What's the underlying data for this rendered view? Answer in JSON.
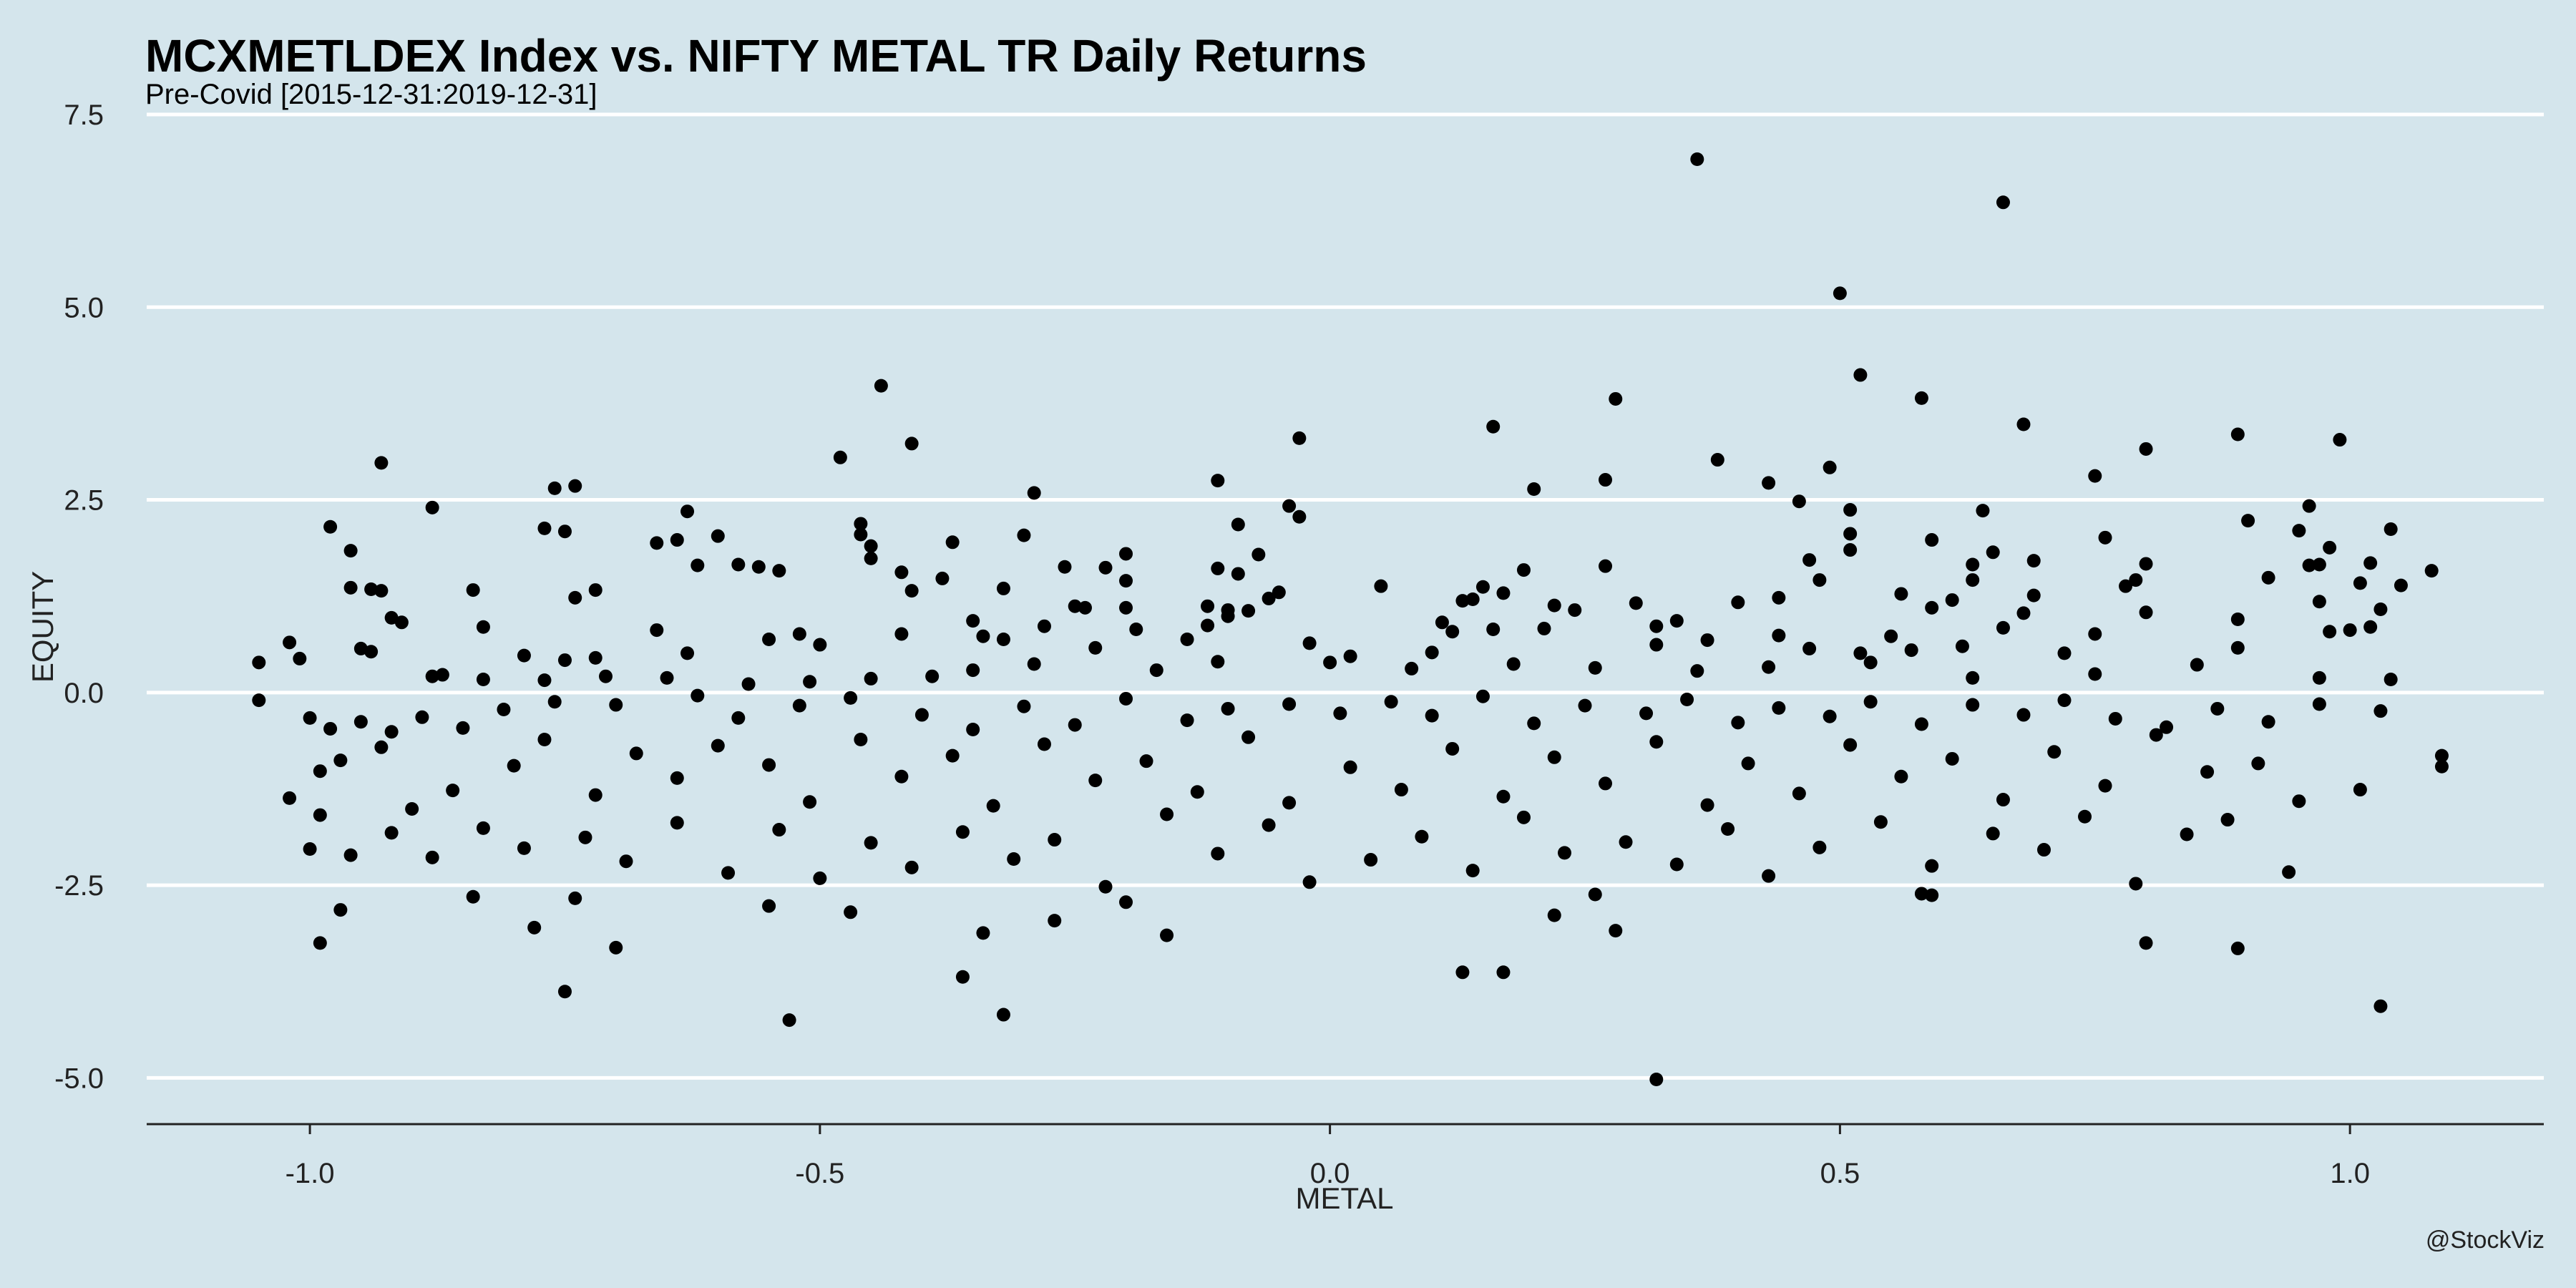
{
  "chart_data": {
    "type": "scatter",
    "title": "MCXMETLDEX Index vs. NIFTY METAL TR Daily Returns",
    "subtitle": "Pre-Covid [2015-12-31:2019-12-31]",
    "xlabel": "METAL",
    "ylabel": "EQUITY",
    "caption": "@StockViz",
    "xlim": [
      -1.16,
      1.19
    ],
    "ylim": [
      -5.6,
      7.5
    ],
    "xticks": [
      -1.0,
      -0.5,
      0.0,
      0.5,
      1.0
    ],
    "xtick_labels": [
      "-1.0",
      "-0.5",
      "0.0",
      "0.5",
      "1.0"
    ],
    "yticks": [
      -5.0,
      -2.5,
      0.0,
      2.5,
      5.0,
      7.5
    ],
    "ytick_labels": [
      "-5.0",
      "-2.5",
      "0.0",
      "2.5",
      "5.0",
      "7.5"
    ],
    "grid": "horizontal",
    "colors": {
      "background": "#d4e5ec",
      "grid": "#ffffff",
      "point": "#000000"
    },
    "points": [
      [
        0.36,
        6.92
      ],
      [
        0.66,
        6.36
      ],
      [
        0.5,
        5.18
      ],
      [
        0.52,
        4.12
      ],
      [
        -0.44,
        3.98
      ],
      [
        0.28,
        3.81
      ],
      [
        0.58,
        3.82
      ],
      [
        0.68,
        3.48
      ],
      [
        0.16,
        3.45
      ],
      [
        0.89,
        3.35
      ],
      [
        -0.03,
        3.3
      ],
      [
        0.99,
        3.28
      ],
      [
        -0.41,
        3.23
      ],
      [
        0.8,
        3.16
      ],
      [
        -0.48,
        3.05
      ],
      [
        0.38,
        3.02
      ],
      [
        -0.93,
        2.98
      ],
      [
        0.49,
        2.92
      ],
      [
        0.75,
        2.81
      ],
      [
        -0.11,
        2.75
      ],
      [
        0.27,
        2.76
      ],
      [
        0.43,
        2.72
      ],
      [
        -0.74,
        2.68
      ],
      [
        -0.76,
        2.65
      ],
      [
        0.2,
        2.64
      ],
      [
        -0.29,
        2.59
      ],
      [
        0.46,
        2.48
      ],
      [
        -0.04,
        2.42
      ],
      [
        0.96,
        2.42
      ],
      [
        -0.88,
        2.4
      ],
      [
        0.51,
        2.37
      ],
      [
        -0.63,
        2.35
      ],
      [
        0.64,
        2.36
      ],
      [
        -0.03,
        2.28
      ],
      [
        0.9,
        2.23
      ],
      [
        -0.46,
        2.19
      ],
      [
        -0.98,
        2.15
      ],
      [
        -0.77,
        2.13
      ],
      [
        -0.09,
        2.18
      ],
      [
        -0.75,
        2.09
      ],
      [
        0.95,
        2.1
      ],
      [
        1.04,
        2.12
      ],
      [
        -0.46,
        2.05
      ],
      [
        -0.6,
        2.03
      ],
      [
        -0.3,
        2.04
      ],
      [
        0.51,
        2.06
      ],
      [
        0.59,
        1.98
      ],
      [
        -0.64,
        1.98
      ],
      [
        -0.66,
        1.94
      ],
      [
        -0.45,
        1.9
      ],
      [
        0.76,
        2.01
      ],
      [
        -0.37,
        1.95
      ],
      [
        0.51,
        1.85
      ],
      [
        -0.96,
        1.84
      ],
      [
        0.98,
        1.88
      ],
      [
        -0.07,
        1.79
      ],
      [
        -0.2,
        1.8
      ],
      [
        -0.45,
        1.74
      ],
      [
        0.65,
        1.82
      ],
      [
        0.63,
        1.66
      ],
      [
        0.47,
        1.72
      ],
      [
        0.69,
        1.71
      ],
      [
        0.8,
        1.67
      ],
      [
        0.97,
        1.66
      ],
      [
        1.02,
        1.68
      ],
      [
        -0.58,
        1.66
      ],
      [
        -0.62,
        1.65
      ],
      [
        -0.56,
        1.63
      ],
      [
        -0.54,
        1.58
      ],
      [
        -0.26,
        1.63
      ],
      [
        -0.22,
        1.62
      ],
      [
        0.27,
        1.64
      ],
      [
        0.19,
        1.59
      ],
      [
        0.96,
        1.65
      ],
      [
        1.08,
        1.58
      ],
      [
        -0.42,
        1.56
      ],
      [
        -0.11,
        1.61
      ],
      [
        -0.09,
        1.54
      ],
      [
        0.92,
        1.49
      ],
      [
        0.48,
        1.46
      ],
      [
        -0.38,
        1.48
      ],
      [
        0.63,
        1.46
      ],
      [
        1.01,
        1.42
      ],
      [
        0.79,
        1.46
      ],
      [
        -0.74,
        1.23
      ],
      [
        -0.2,
        1.45
      ],
      [
        -0.96,
        1.36
      ],
      [
        -0.94,
        1.34
      ],
      [
        -0.93,
        1.32
      ],
      [
        -0.84,
        1.33
      ],
      [
        -0.72,
        1.33
      ],
      [
        -0.41,
        1.32
      ],
      [
        -0.32,
        1.35
      ],
      [
        0.05,
        1.38
      ],
      [
        0.15,
        1.37
      ],
      [
        0.17,
        1.29
      ],
      [
        0.78,
        1.38
      ],
      [
        1.05,
        1.39
      ],
      [
        -0.05,
        1.3
      ],
      [
        -0.06,
        1.22
      ],
      [
        0.56,
        1.28
      ],
      [
        0.69,
        1.26
      ],
      [
        0.61,
        1.2
      ],
      [
        0.44,
        1.23
      ],
      [
        0.14,
        1.21
      ],
      [
        0.13,
        1.19
      ],
      [
        0.4,
        1.17
      ],
      [
        0.3,
        1.16
      ],
      [
        0.22,
        1.13
      ],
      [
        0.97,
        1.18
      ],
      [
        -0.25,
        1.12
      ],
      [
        -0.24,
        1.1
      ],
      [
        -0.2,
        1.1
      ],
      [
        -0.12,
        1.12
      ],
      [
        -0.1,
        1.07
      ],
      [
        -0.08,
        1.06
      ],
      [
        -0.1,
        0.99
      ],
      [
        0.24,
        1.07
      ],
      [
        0.59,
        1.1
      ],
      [
        0.68,
        1.03
      ],
      [
        0.8,
        1.04
      ],
      [
        1.03,
        1.08
      ],
      [
        -0.92,
        0.97
      ],
      [
        -0.91,
        0.91
      ],
      [
        -0.35,
        0.93
      ],
      [
        -0.28,
        0.86
      ],
      [
        -0.12,
        0.87
      ],
      [
        0.11,
        0.91
      ],
      [
        0.34,
        0.93
      ],
      [
        0.32,
        0.86
      ],
      [
        0.21,
        0.83
      ],
      [
        0.16,
        0.82
      ],
      [
        0.66,
        0.84
      ],
      [
        0.75,
        0.76
      ],
      [
        0.89,
        0.95
      ],
      [
        -0.83,
        0.85
      ],
      [
        -0.66,
        0.81
      ],
      [
        -0.52,
        0.76
      ],
      [
        -0.19,
        0.82
      ],
      [
        -0.42,
        0.76
      ],
      [
        0.12,
        0.79
      ],
      [
        0.44,
        0.74
      ],
      [
        0.55,
        0.73
      ],
      [
        0.98,
        0.79
      ],
      [
        1.0,
        0.81
      ],
      [
        1.02,
        0.85
      ],
      [
        -1.05,
        0.39
      ],
      [
        -1.02,
        0.65
      ],
      [
        -1.01,
        0.44
      ],
      [
        -0.95,
        0.57
      ],
      [
        -0.94,
        0.53
      ],
      [
        -0.63,
        0.51
      ],
      [
        -0.79,
        0.48
      ],
      [
        -0.75,
        0.42
      ],
      [
        -0.72,
        0.45
      ],
      [
        -0.55,
        0.69
      ],
      [
        -0.5,
        0.62
      ],
      [
        -0.34,
        0.73
      ],
      [
        -0.32,
        0.69
      ],
      [
        -0.23,
        0.58
      ],
      [
        -0.14,
        0.69
      ],
      [
        -0.02,
        0.64
      ],
      [
        0.02,
        0.47
      ],
      [
        0.1,
        0.52
      ],
      [
        0.32,
        0.62
      ],
      [
        0.37,
        0.68
      ],
      [
        0.47,
        0.57
      ],
      [
        0.52,
        0.51
      ],
      [
        0.57,
        0.55
      ],
      [
        0.62,
        0.6
      ],
      [
        0.72,
        0.51
      ],
      [
        0.89,
        0.58
      ],
      [
        -0.87,
        0.23
      ],
      [
        -0.88,
        0.21
      ],
      [
        -0.83,
        0.17
      ],
      [
        -0.77,
        0.16
      ],
      [
        -0.71,
        0.21
      ],
      [
        -0.65,
        0.19
      ],
      [
        -0.57,
        0.11
      ],
      [
        -0.51,
        0.14
      ],
      [
        -0.45,
        0.18
      ],
      [
        -0.39,
        0.21
      ],
      [
        -0.35,
        0.29
      ],
      [
        -0.29,
        0.37
      ],
      [
        -0.17,
        0.29
      ],
      [
        -0.11,
        0.4
      ],
      [
        0.0,
        0.39
      ],
      [
        0.08,
        0.31
      ],
      [
        0.18,
        0.37
      ],
      [
        0.26,
        0.32
      ],
      [
        0.36,
        0.28
      ],
      [
        0.43,
        0.33
      ],
      [
        0.53,
        0.39
      ],
      [
        0.63,
        0.19
      ],
      [
        0.75,
        0.24
      ],
      [
        0.85,
        0.36
      ],
      [
        0.97,
        0.19
      ],
      [
        1.04,
        0.17
      ],
      [
        -1.05,
        -0.1
      ],
      [
        -1.0,
        -0.33
      ],
      [
        -0.98,
        -0.47
      ],
      [
        -0.95,
        -0.38
      ],
      [
        -0.92,
        -0.51
      ],
      [
        -0.89,
        -0.32
      ],
      [
        -0.85,
        -0.46
      ],
      [
        -0.81,
        -0.22
      ],
      [
        -0.76,
        -0.12
      ],
      [
        -0.7,
        -0.16
      ],
      [
        -0.62,
        -0.04
      ],
      [
        -0.58,
        -0.33
      ],
      [
        -0.52,
        -0.17
      ],
      [
        -0.47,
        -0.07
      ],
      [
        -0.4,
        -0.29
      ],
      [
        -0.35,
        -0.48
      ],
      [
        -0.3,
        -0.18
      ],
      [
        -0.25,
        -0.42
      ],
      [
        -0.2,
        -0.08
      ],
      [
        -0.14,
        -0.36
      ],
      [
        -0.1,
        -0.21
      ],
      [
        -0.04,
        -0.15
      ],
      [
        0.01,
        -0.27
      ],
      [
        0.06,
        -0.12
      ],
      [
        0.1,
        -0.3
      ],
      [
        0.15,
        -0.05
      ],
      [
        0.2,
        -0.4
      ],
      [
        0.25,
        -0.17
      ],
      [
        0.31,
        -0.27
      ],
      [
        0.35,
        -0.09
      ],
      [
        0.4,
        -0.39
      ],
      [
        0.44,
        -0.2
      ],
      [
        0.49,
        -0.31
      ],
      [
        0.53,
        -0.12
      ],
      [
        0.58,
        -0.41
      ],
      [
        0.63,
        -0.16
      ],
      [
        0.68,
        -0.29
      ],
      [
        0.72,
        -0.1
      ],
      [
        0.77,
        -0.34
      ],
      [
        0.82,
        -0.45
      ],
      [
        0.87,
        -0.21
      ],
      [
        0.92,
        -0.38
      ],
      [
        0.97,
        -0.15
      ],
      [
        1.03,
        -0.24
      ],
      [
        1.09,
        -0.82
      ],
      [
        1.09,
        -0.96
      ],
      [
        -1.02,
        -1.37
      ],
      [
        -0.99,
        -1.02
      ],
      [
        -0.97,
        -0.88
      ],
      [
        -0.93,
        -0.71
      ],
      [
        -0.9,
        -1.51
      ],
      [
        -0.86,
        -1.27
      ],
      [
        -0.8,
        -0.95
      ],
      [
        -0.77,
        -0.61
      ],
      [
        -0.72,
        -1.33
      ],
      [
        -0.68,
        -0.79
      ],
      [
        -0.64,
        -1.11
      ],
      [
        -0.6,
        -0.69
      ],
      [
        -0.55,
        -0.94
      ],
      [
        -0.51,
        -1.42
      ],
      [
        -0.46,
        -0.61
      ],
      [
        -0.42,
        -1.09
      ],
      [
        -0.37,
        -0.82
      ],
      [
        -0.33,
        -1.47
      ],
      [
        -0.28,
        -0.67
      ],
      [
        -0.23,
        -1.14
      ],
      [
        -0.18,
        -0.89
      ],
      [
        -0.13,
        -1.29
      ],
      [
        -0.08,
        -0.58
      ],
      [
        -0.04,
        -1.43
      ],
      [
        0.02,
        -0.97
      ],
      [
        0.07,
        -1.26
      ],
      [
        0.12,
        -0.73
      ],
      [
        0.17,
        -1.35
      ],
      [
        0.22,
        -0.84
      ],
      [
        0.27,
        -1.18
      ],
      [
        0.32,
        -0.64
      ],
      [
        0.37,
        -1.46
      ],
      [
        0.41,
        -0.92
      ],
      [
        0.46,
        -1.31
      ],
      [
        0.51,
        -0.68
      ],
      [
        0.56,
        -1.09
      ],
      [
        0.61,
        -0.86
      ],
      [
        0.66,
        -1.39
      ],
      [
        0.71,
        -0.77
      ],
      [
        0.76,
        -1.21
      ],
      [
        0.81,
        -0.55
      ],
      [
        0.86,
        -1.03
      ],
      [
        0.91,
        -0.92
      ],
      [
        0.95,
        -1.41
      ],
      [
        1.01,
        -1.26
      ],
      [
        -1.0,
        -2.03
      ],
      [
        -0.99,
        -1.59
      ],
      [
        -0.96,
        -2.11
      ],
      [
        -0.92,
        -1.82
      ],
      [
        -0.88,
        -2.14
      ],
      [
        -0.83,
        -1.76
      ],
      [
        -0.79,
        -2.02
      ],
      [
        -0.73,
        -1.88
      ],
      [
        -0.69,
        -2.19
      ],
      [
        -0.64,
        -1.69
      ],
      [
        -0.59,
        -2.34
      ],
      [
        -0.54,
        -1.78
      ],
      [
        -0.5,
        -2.41
      ],
      [
        -0.45,
        -1.95
      ],
      [
        -0.41,
        -2.27
      ],
      [
        -0.36,
        -1.81
      ],
      [
        -0.31,
        -2.16
      ],
      [
        -0.27,
        -1.91
      ],
      [
        -0.22,
        -2.52
      ],
      [
        -0.16,
        -1.58
      ],
      [
        -0.11,
        -2.09
      ],
      [
        -0.06,
        -1.72
      ],
      [
        -0.02,
        -2.46
      ],
      [
        0.04,
        -2.17
      ],
      [
        0.09,
        -1.87
      ],
      [
        0.14,
        -2.31
      ],
      [
        0.19,
        -1.62
      ],
      [
        0.23,
        -2.08
      ],
      [
        0.29,
        -1.94
      ],
      [
        0.34,
        -2.23
      ],
      [
        0.39,
        -1.77
      ],
      [
        0.43,
        -2.38
      ],
      [
        0.48,
        -2.01
      ],
      [
        0.54,
        -1.68
      ],
      [
        0.59,
        -2.25
      ],
      [
        0.65,
        -1.83
      ],
      [
        0.7,
        -2.04
      ],
      [
        0.74,
        -1.61
      ],
      [
        0.79,
        -2.48
      ],
      [
        0.84,
        -1.84
      ],
      [
        0.88,
        -1.65
      ],
      [
        0.94,
        -2.33
      ],
      [
        -0.99,
        -3.25
      ],
      [
        -0.97,
        -2.82
      ],
      [
        -0.84,
        -2.65
      ],
      [
        -0.78,
        -3.05
      ],
      [
        -0.75,
        -3.88
      ],
      [
        -0.74,
        -2.67
      ],
      [
        -0.7,
        -3.31
      ],
      [
        -0.55,
        -2.77
      ],
      [
        -0.53,
        -4.25
      ],
      [
        -0.47,
        -2.85
      ],
      [
        -0.36,
        -3.69
      ],
      [
        -0.34,
        -3.12
      ],
      [
        -0.32,
        -4.18
      ],
      [
        -0.27,
        -2.96
      ],
      [
        -0.2,
        -2.72
      ],
      [
        -0.16,
        -3.15
      ],
      [
        0.13,
        -3.63
      ],
      [
        0.17,
        -3.63
      ],
      [
        0.22,
        -2.89
      ],
      [
        0.26,
        -2.62
      ],
      [
        0.28,
        -3.09
      ],
      [
        0.32,
        -5.02
      ],
      [
        0.58,
        -2.61
      ],
      [
        0.59,
        -2.63
      ],
      [
        0.8,
        -3.25
      ],
      [
        0.89,
        -3.32
      ],
      [
        1.03,
        -4.07
      ]
    ]
  }
}
